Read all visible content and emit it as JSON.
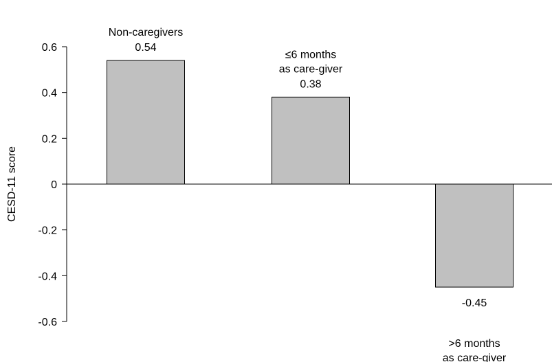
{
  "chart_data": {
    "type": "bar",
    "title": "",
    "xlabel": "",
    "ylabel": "CESD-11 score",
    "ylim": [
      -0.6,
      0.6
    ],
    "yticks": [
      "0.6",
      "0.4",
      "0.2",
      "0",
      "-0.2",
      "-0.4",
      "-0.6"
    ],
    "grid": false,
    "bar_color": "#c0c0c0",
    "categories": [
      [
        "Non-caregivers"
      ],
      [
        "≤6 months",
        "as care-giver"
      ],
      [
        ">6 months",
        "as care-giver"
      ]
    ],
    "values": [
      0.54,
      0.38,
      -0.45
    ],
    "value_labels": [
      "0.54",
      "0.38",
      "-0.45"
    ]
  }
}
